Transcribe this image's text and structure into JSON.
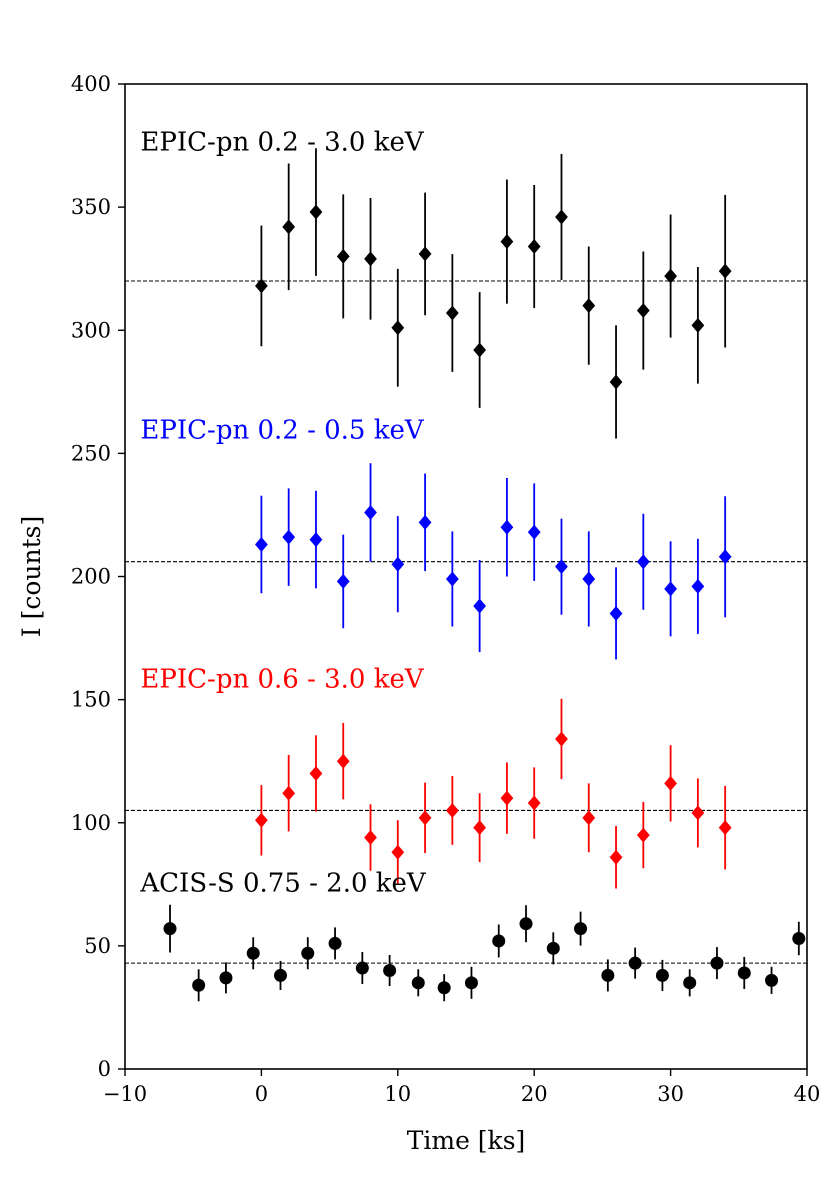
{
  "chart_data": {
    "type": "scatter",
    "xlabel": "Time [ks]",
    "ylabel": "I [counts]",
    "xlim": [
      -10,
      40
    ],
    "ylim": [
      0,
      400
    ],
    "xticks": [
      -10,
      0,
      10,
      20,
      30,
      40
    ],
    "yticks": [
      0,
      50,
      100,
      150,
      200,
      250,
      300,
      350,
      400
    ],
    "xtick_labels": [
      "−10",
      "0",
      "10",
      "20",
      "30",
      "40"
    ],
    "ytick_labels": [
      "0",
      "50",
      "100",
      "150",
      "200",
      "250",
      "300",
      "350",
      "400"
    ],
    "grid": false,
    "series": [
      {
        "name": "EPIC-pn 0.2 - 3.0 keV",
        "color": "#000000",
        "marker": "diamond",
        "label_at": [
          0,
          373
        ],
        "mean": 320,
        "x": [
          0,
          2,
          4,
          6,
          8,
          10,
          12,
          14,
          16,
          18,
          20,
          22,
          24,
          26,
          28,
          30,
          32,
          34
        ],
        "y": [
          318,
          342,
          348,
          330,
          329,
          301,
          331,
          307,
          292,
          336,
          334,
          346,
          310,
          279,
          308,
          322,
          302,
          324
        ],
        "err": [
          24.5,
          25.7,
          25.9,
          25.2,
          24.7,
          23.9,
          24.9,
          23.9,
          23.5,
          25.2,
          25,
          25.6,
          24,
          23,
          24,
          25,
          23.7,
          31
        ]
      },
      {
        "name": "EPIC-pn 0.2 - 0.5 keV",
        "color": "#0000ff",
        "marker": "diamond",
        "label_at": [
          0,
          256
        ],
        "mean": 206,
        "x": [
          0,
          2,
          4,
          6,
          8,
          10,
          12,
          14,
          16,
          18,
          20,
          22,
          24,
          26,
          28,
          30,
          32,
          34
        ],
        "y": [
          213,
          216,
          215,
          198,
          226,
          205,
          222,
          199,
          188,
          220,
          218,
          204,
          199,
          185,
          206,
          195,
          196,
          208
        ],
        "err": [
          19.8,
          19.8,
          19.8,
          19,
          20,
          19.5,
          19.8,
          19.3,
          18.7,
          20,
          19.8,
          19.5,
          19.3,
          18.7,
          19.5,
          19.3,
          19.3,
          24.6
        ]
      },
      {
        "name": "EPIC-pn 0.6 - 3.0 keV",
        "color": "#ff0000",
        "marker": "diamond",
        "label_at": [
          0,
          155
        ],
        "mean": 105,
        "x": [
          0,
          2,
          4,
          6,
          8,
          10,
          12,
          14,
          16,
          18,
          20,
          22,
          24,
          26,
          28,
          30,
          32,
          34
        ],
        "y": [
          101,
          112,
          120,
          125,
          94,
          88,
          102,
          105,
          98,
          110,
          108,
          134,
          102,
          86,
          95,
          116,
          104,
          98
        ],
        "err": [
          14.3,
          15.5,
          15.5,
          15.5,
          13.5,
          13,
          14.3,
          14,
          14,
          14.5,
          14.5,
          16.3,
          14,
          12.7,
          13.5,
          15.5,
          14,
          17
        ]
      },
      {
        "name": "ACIS-S 0.75 - 2.0 keV",
        "color": "#000000",
        "marker": "circle",
        "label_at": [
          0,
          72
        ],
        "mean": 43,
        "x": [
          -6.7,
          -4.6,
          -2.6,
          -0.6,
          1.4,
          3.4,
          5.4,
          7.4,
          9.4,
          11.5,
          13.4,
          15.4,
          17.4,
          19.4,
          21.4,
          23.4,
          25.4,
          27.4,
          29.4,
          31.4,
          33.4,
          35.4,
          37.4,
          39.4
        ],
        "y": [
          57,
          34,
          37,
          47,
          38,
          47,
          51,
          41,
          40,
          35,
          33,
          35,
          52,
          59,
          49,
          57,
          38,
          43,
          38,
          35,
          43,
          39,
          36,
          53
        ],
        "err": [
          9.7,
          6.5,
          6.3,
          6.5,
          5.9,
          6.5,
          6.5,
          6.5,
          6.3,
          5.5,
          5.5,
          6.5,
          6.7,
          7.5,
          6.5,
          6.9,
          6.5,
          6.3,
          6.3,
          5.5,
          6.5,
          6.5,
          5.5,
          6.8
        ]
      }
    ]
  }
}
